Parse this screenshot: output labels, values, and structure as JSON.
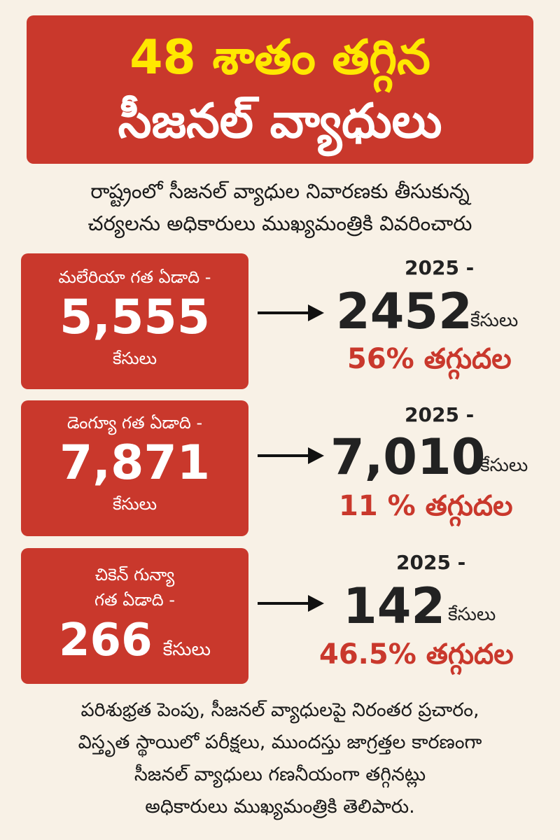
{
  "header": {
    "line1": "48 శాతం తగ్గిన",
    "line2": "సీజనల్ వ్యాధులు"
  },
  "intro": {
    "line1": "రాష్ట్రంలో సీజనల్ వ్యాధుల నివారణకు తీసుకున్న",
    "line2": "చర్యలను అధికారులు ముఖ్యమంత్రికి వివరించారు"
  },
  "diseases": [
    {
      "label": "మలేరియా గత ఏడాది -",
      "prev_value": "5,555",
      "prev_unit": "కేసులు",
      "year": "2025 -",
      "new_value": "2452",
      "new_unit": "కేసులు",
      "reduction": "56% తగ్గుదల"
    },
    {
      "label": "డెంగ్యూ గత ఏడాది -",
      "prev_value": "7,871",
      "prev_unit": "కేసులు",
      "year": "2025 -",
      "new_value": "7,010",
      "new_unit": "కేసులు",
      "reduction": "11 % తగ్గుదల"
    },
    {
      "label_line1": "చికెన్ గున్యా",
      "label_line2": "గత ఏడాది -",
      "prev_value": "266",
      "prev_unit": "కేసులు",
      "year": "2025 -",
      "new_value": "142",
      "new_unit": "కేసులు",
      "reduction": "46.5% తగ్గుదల"
    }
  ],
  "footer": {
    "line1": "పరిశుభ్రత పెంపు, సీజనల్ వ్యాధులపై నిరంతర ప్రచారం,",
    "line2": "విస్తృత స్థాయిలో పరీక్షలు, ముందస్తు జాగ్రత్తల కారణంగా",
    "line3": "సీజనల్ వ్యాధులు గణనీయంగా తగ్గినట్లు",
    "line4": "అధికారులు ముఖ్యమంత్రికి తెలిపారు."
  },
  "colors": {
    "background": "#f8f1e6",
    "accent_red": "#c9382c",
    "title_yellow": "#ffe800",
    "text_dark": "#222222"
  }
}
